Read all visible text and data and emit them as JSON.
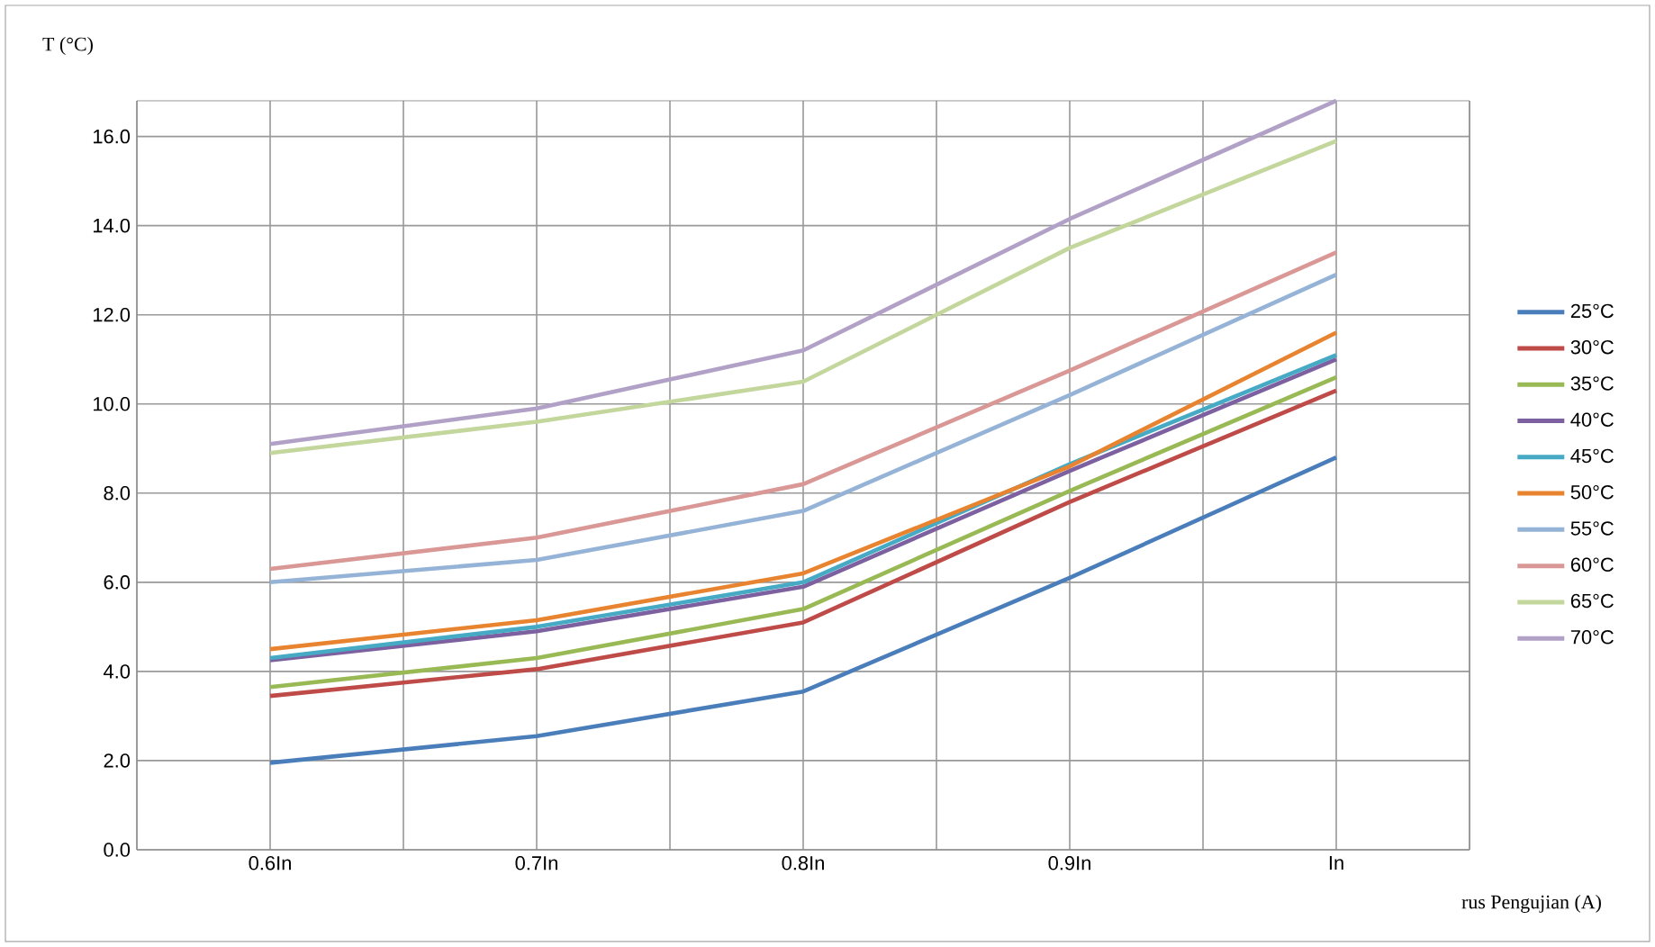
{
  "chart_data": {
    "type": "line",
    "xlabel": "rus Pengujian (A)",
    "ylabel": "T (°C)",
    "categories": [
      "0.6In",
      "0.7In",
      "0.8In",
      "0.9In",
      "In"
    ],
    "ylim": [
      0,
      16.8
    ],
    "yticks": [
      {
        "value": 0,
        "label": "0.0"
      },
      {
        "value": 2,
        "label": "2.0"
      },
      {
        "value": 4,
        "label": "4.0"
      },
      {
        "value": 6,
        "label": "6.0"
      },
      {
        "value": 8,
        "label": "8.0"
      },
      {
        "value": 10,
        "label": "10.0"
      },
      {
        "value": 12,
        "label": "12.0"
      },
      {
        "value": 14,
        "label": "14.0"
      },
      {
        "value": 16,
        "label": "16.0"
      }
    ],
    "grid": true,
    "legend": "right",
    "line_style": "solid",
    "series": [
      {
        "name": "25°C",
        "color": "#4a7ebb",
        "values": [
          1.95,
          2.55,
          3.55,
          6.1,
          8.8
        ]
      },
      {
        "name": "30°C",
        "color": "#be4b48",
        "values": [
          3.45,
          4.05,
          5.1,
          7.8,
          10.3
        ]
      },
      {
        "name": "35°C",
        "color": "#98b954",
        "values": [
          3.65,
          4.3,
          5.4,
          8.05,
          10.6
        ]
      },
      {
        "name": "40°C",
        "color": "#7d60a0",
        "values": [
          4.25,
          4.9,
          5.9,
          8.5,
          11.0
        ]
      },
      {
        "name": "45°C",
        "color": "#46aac5",
        "values": [
          4.3,
          5.0,
          6.0,
          8.65,
          11.1
        ]
      },
      {
        "name": "50°C",
        "color": "#e8842f",
        "values": [
          4.5,
          5.15,
          6.2,
          8.6,
          11.6
        ]
      },
      {
        "name": "55°C",
        "color": "#95b3d7",
        "values": [
          6.0,
          6.5,
          7.6,
          10.2,
          12.9
        ]
      },
      {
        "name": "60°C",
        "color": "#d99795",
        "values": [
          6.3,
          7.0,
          8.2,
          10.75,
          13.4
        ]
      },
      {
        "name": "65°C",
        "color": "#c3d69b",
        "values": [
          8.9,
          9.6,
          10.5,
          13.5,
          15.9
        ]
      },
      {
        "name": "70°C",
        "color": "#b2a1c7",
        "values": [
          9.1,
          9.9,
          11.2,
          14.15,
          16.8
        ]
      }
    ]
  }
}
